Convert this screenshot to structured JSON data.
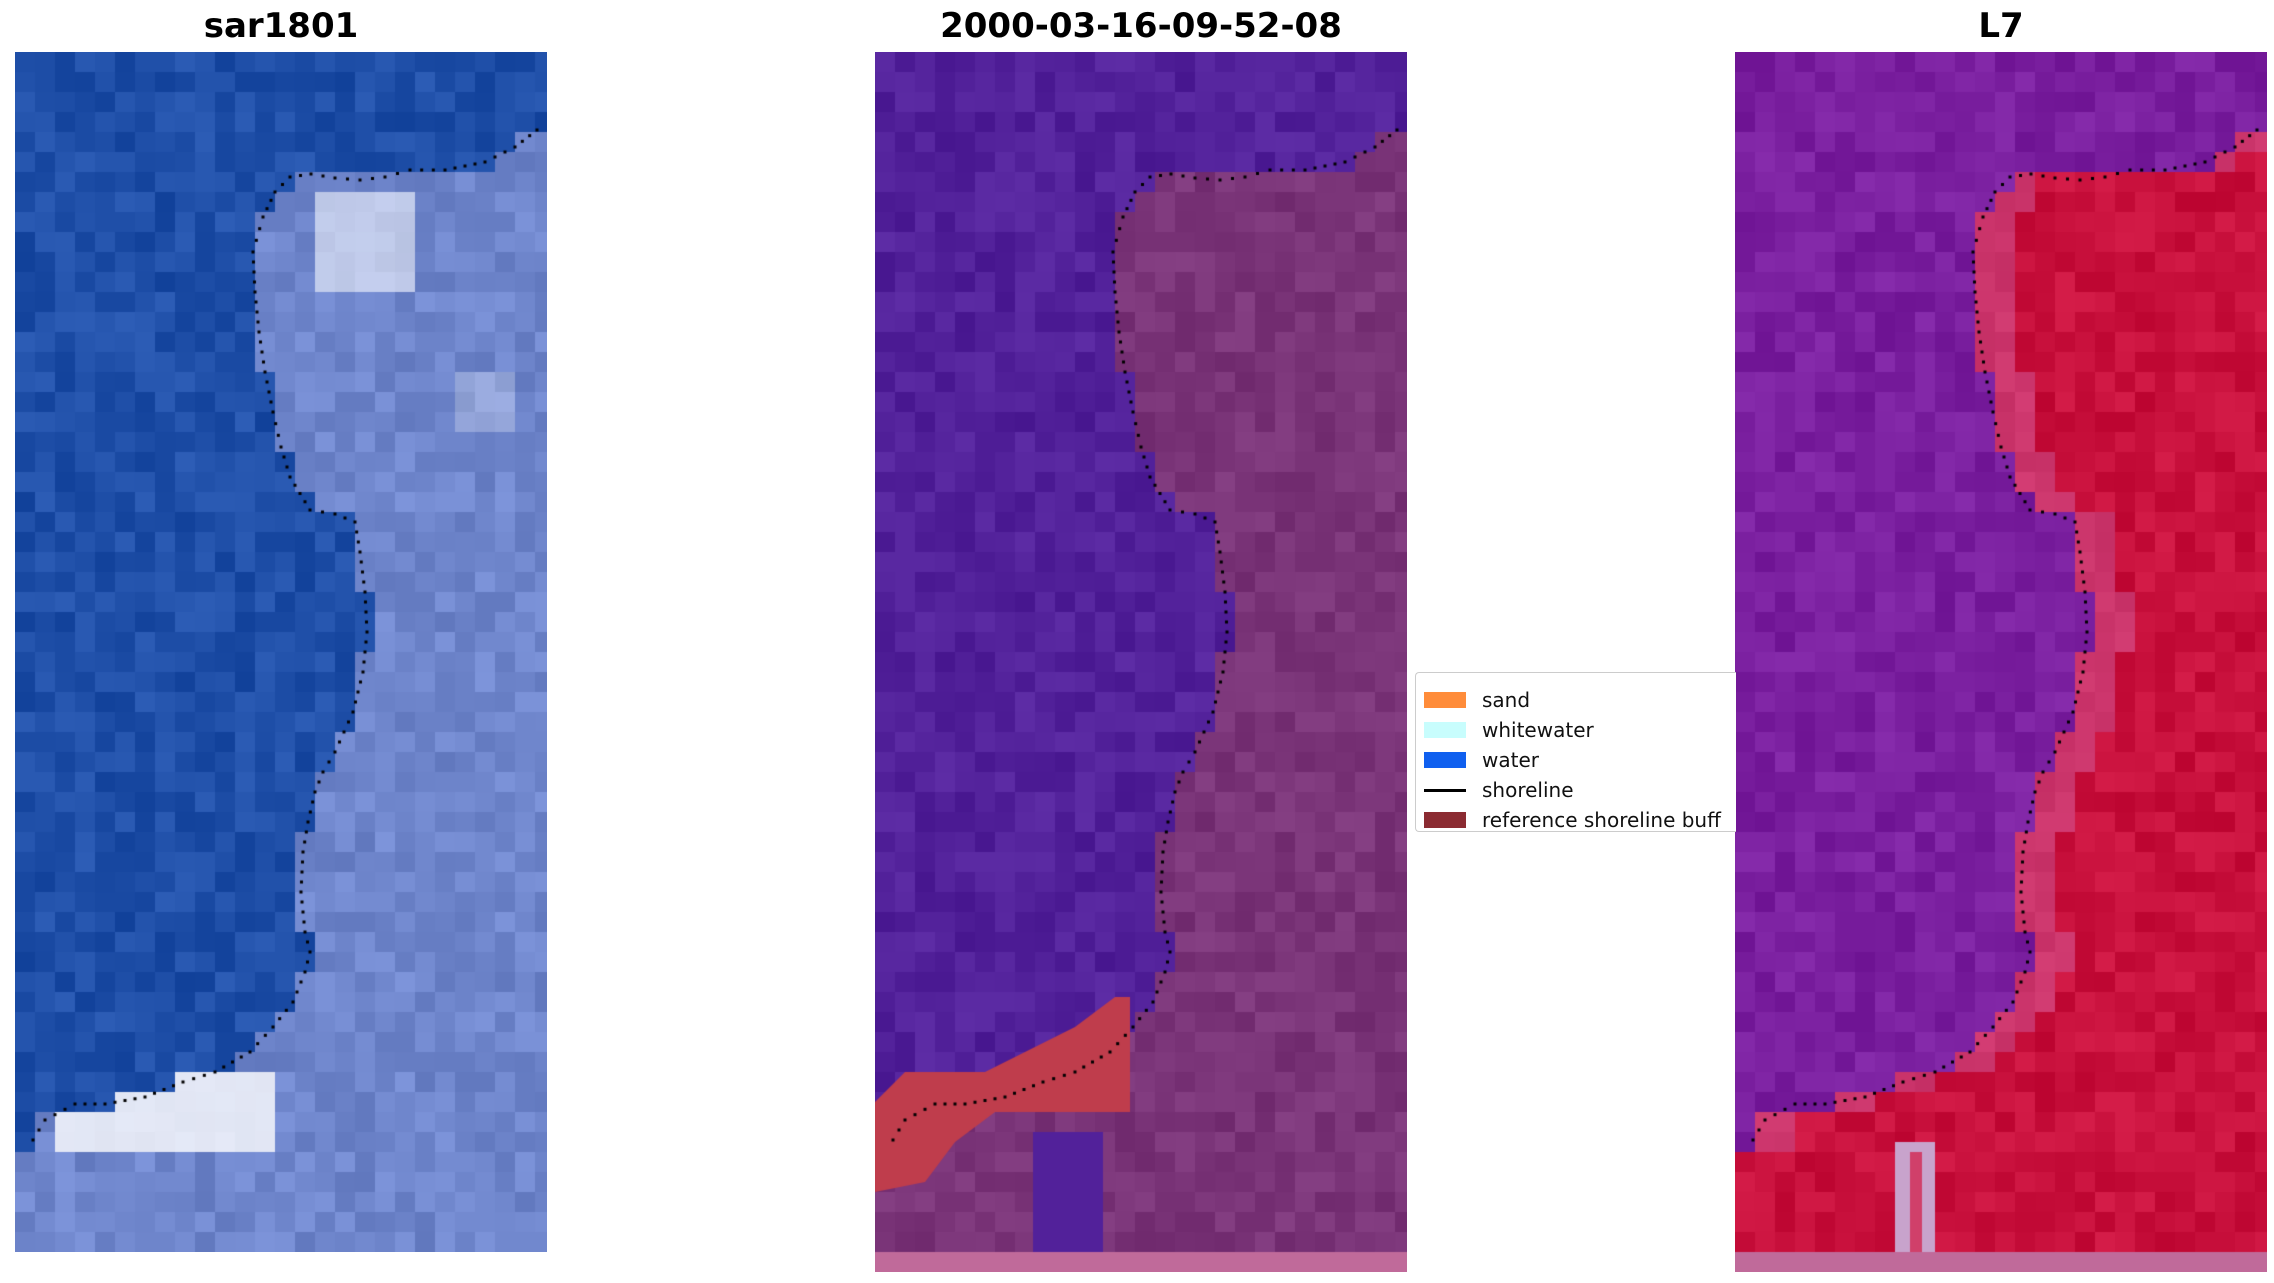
{
  "panels": [
    {
      "title": "sar1801",
      "kind": "rgb"
    },
    {
      "title": "2000-03-16-09-52-08",
      "kind": "classified"
    },
    {
      "title": "L7",
      "kind": "index"
    }
  ],
  "legend": {
    "items": [
      {
        "label": "sand",
        "type": "patch",
        "color": "#ff8c3a"
      },
      {
        "label": "whitewater",
        "type": "patch",
        "color": "#c8fdfd"
      },
      {
        "label": "water",
        "type": "patch",
        "color": "#1060ef"
      },
      {
        "label": "shoreline",
        "type": "line",
        "color": "#000000"
      },
      {
        "label": "reference shoreline buff",
        "type": "patch",
        "color": "#8b2b32"
      }
    ]
  },
  "colors": {
    "sea_rgb": "#1f4fa8",
    "land_rgb": "#6f86cc",
    "sea_class": "#52219a",
    "land_class": "#7a3478",
    "buffer": "#bf3d4c",
    "sea_index": "#7a1f9f",
    "land_index": "#c8103c"
  }
}
